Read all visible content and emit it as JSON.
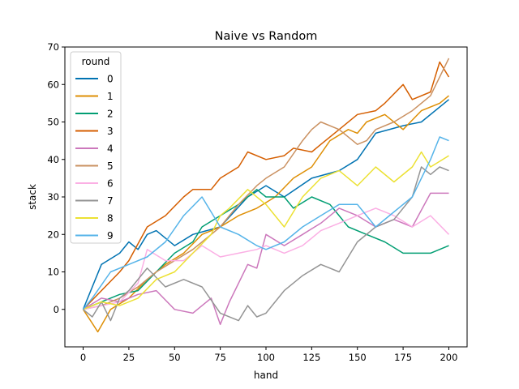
{
  "chart_data": {
    "type": "line",
    "title": "Naive vs Random",
    "xlabel": "hand",
    "ylabel": "stack",
    "xlim": [
      -10,
      210
    ],
    "ylim": [
      -10,
      70
    ],
    "xticks": [
      0,
      25,
      50,
      75,
      100,
      125,
      150,
      175,
      200
    ],
    "yticks": [
      0,
      10,
      20,
      30,
      40,
      50,
      60,
      70
    ],
    "grid": false,
    "legend": {
      "title": "round",
      "position": "top-left"
    },
    "series": [
      {
        "name": "0",
        "color": "#0173b2",
        "x": [
          0,
          10,
          20,
          25,
          30,
          35,
          40,
          50,
          60,
          75,
          90,
          100,
          110,
          125,
          140,
          150,
          160,
          175,
          185,
          200
        ],
        "y": [
          0,
          12,
          15,
          18,
          16,
          20,
          21,
          17,
          20,
          22,
          30,
          33,
          30,
          35,
          37,
          40,
          47,
          49,
          50,
          56
        ]
      },
      {
        "name": "1",
        "color": "#de8f05",
        "x": [
          0,
          4,
          8,
          15,
          25,
          35,
          45,
          55,
          65,
          75,
          85,
          95,
          105,
          115,
          125,
          135,
          145,
          150,
          155,
          165,
          175,
          185,
          195,
          200
        ],
        "y": [
          0,
          -3,
          -6,
          0,
          3,
          8,
          12,
          15,
          20,
          22,
          25,
          27,
          30,
          35,
          38,
          45,
          48,
          47,
          50,
          52,
          48,
          53,
          55,
          57
        ]
      },
      {
        "name": "2",
        "color": "#029e73",
        "x": [
          0,
          10,
          20,
          30,
          40,
          50,
          60,
          65,
          75,
          85,
          95,
          100,
          110,
          115,
          125,
          135,
          145,
          155,
          165,
          175,
          180,
          190,
          200
        ],
        "y": [
          0,
          2,
          4,
          5,
          10,
          15,
          18,
          22,
          25,
          28,
          32,
          30,
          30,
          27,
          30,
          28,
          22,
          20,
          18,
          15,
          15,
          15,
          17
        ]
      },
      {
        "name": "3",
        "color": "#d55e00",
        "x": [
          0,
          10,
          20,
          25,
          35,
          45,
          55,
          60,
          70,
          75,
          85,
          90,
          100,
          110,
          115,
          125,
          130,
          140,
          150,
          160,
          165,
          175,
          180,
          190,
          195,
          200
        ],
        "y": [
          0,
          5,
          10,
          13,
          22,
          25,
          30,
          32,
          32,
          35,
          38,
          42,
          40,
          41,
          43,
          42,
          44,
          48,
          52,
          53,
          55,
          60,
          56,
          58,
          66,
          62
        ]
      },
      {
        "name": "4",
        "color": "#cc78bc",
        "x": [
          0,
          10,
          20,
          30,
          40,
          50,
          60,
          70,
          75,
          80,
          90,
          95,
          100,
          110,
          120,
          130,
          140,
          150,
          160,
          170,
          180,
          190,
          200
        ],
        "y": [
          0,
          3,
          2,
          4,
          5,
          0,
          -1,
          3,
          -4,
          2,
          12,
          11,
          20,
          17,
          20,
          23,
          27,
          25,
          22,
          24,
          22,
          31,
          31
        ]
      },
      {
        "name": "5",
        "color": "#ca9161",
        "x": [
          0,
          10,
          20,
          30,
          40,
          50,
          60,
          70,
          75,
          85,
          95,
          100,
          110,
          120,
          125,
          130,
          140,
          150,
          155,
          160,
          170,
          180,
          190,
          200
        ],
        "y": [
          0,
          1,
          3,
          6,
          10,
          13,
          16,
          20,
          22,
          28,
          33,
          35,
          38,
          45,
          48,
          50,
          48,
          44,
          45,
          48,
          50,
          53,
          57,
          67
        ]
      },
      {
        "name": "6",
        "color": "#fbafe4",
        "x": [
          0,
          10,
          20,
          30,
          35,
          45,
          55,
          65,
          75,
          85,
          95,
          100,
          110,
          120,
          130,
          140,
          150,
          160,
          170,
          180,
          190,
          200
        ],
        "y": [
          0,
          1,
          2,
          7,
          16,
          13,
          13,
          17,
          14,
          15,
          16,
          17,
          15,
          17,
          21,
          23,
          25,
          27,
          25,
          22,
          25,
          20
        ]
      },
      {
        "name": "7",
        "color": "#949494",
        "x": [
          0,
          5,
          10,
          15,
          20,
          25,
          35,
          45,
          55,
          65,
          75,
          85,
          90,
          95,
          100,
          110,
          120,
          130,
          140,
          150,
          160,
          170,
          180,
          185,
          190,
          195,
          200
        ],
        "y": [
          0,
          -2,
          2,
          -3,
          3,
          5,
          11,
          6,
          8,
          6,
          -1,
          -3,
          1,
          -2,
          -1,
          5,
          9,
          12,
          10,
          18,
          22,
          24,
          30,
          38,
          36,
          38,
          37
        ]
      },
      {
        "name": "8",
        "color": "#ece133",
        "x": [
          0,
          10,
          20,
          30,
          40,
          50,
          60,
          70,
          75,
          80,
          90,
          100,
          110,
          120,
          130,
          140,
          150,
          160,
          170,
          180,
          185,
          190,
          200
        ],
        "y": [
          0,
          2,
          1,
          3,
          8,
          10,
          15,
          20,
          25,
          27,
          32,
          28,
          22,
          30,
          35,
          37,
          33,
          38,
          34,
          38,
          42,
          38,
          41
        ]
      },
      {
        "name": "9",
        "color": "#56b4e9",
        "x": [
          0,
          5,
          15,
          25,
          35,
          45,
          55,
          65,
          75,
          85,
          95,
          100,
          110,
          120,
          130,
          140,
          150,
          160,
          170,
          180,
          190,
          195,
          200
        ],
        "y": [
          0,
          3,
          10,
          12,
          14,
          18,
          25,
          30,
          22,
          20,
          17,
          16,
          18,
          22,
          25,
          28,
          28,
          22,
          26,
          30,
          40,
          46,
          45
        ]
      }
    ]
  }
}
